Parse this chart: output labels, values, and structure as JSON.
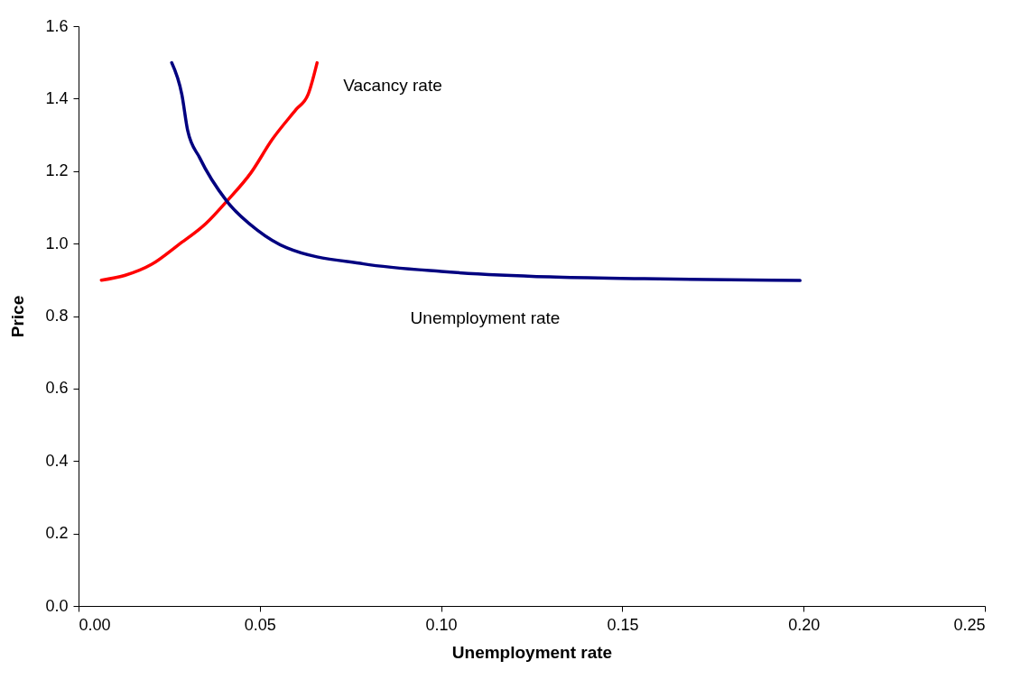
{
  "chart_data": {
    "type": "line",
    "xlabel": "Unemployment rate",
    "ylabel": "Price",
    "xlim": [
      0,
      0.25
    ],
    "xticks": [
      {
        "value": 0,
        "label": "0.00"
      },
      {
        "value": 0.05,
        "label": "0.05"
      },
      {
        "value": 0.1,
        "label": "0.10"
      },
      {
        "value": 0.15,
        "label": "0.15"
      },
      {
        "value": 0.2,
        "label": "0.20"
      },
      {
        "value": 0.25,
        "label": "0.25"
      }
    ],
    "ylim": [
      0,
      1.6
    ],
    "yticks": [
      {
        "value": 0,
        "label": "0.0"
      },
      {
        "value": 0.2,
        "label": "0.2"
      },
      {
        "value": 0.4,
        "label": "0.4"
      },
      {
        "value": 0.6,
        "label": "0.6"
      },
      {
        "value": 0.8,
        "label": "0.8"
      },
      {
        "value": 1,
        "label": "1.0"
      },
      {
        "value": 1.2,
        "label": "1.2"
      },
      {
        "value": 1.4,
        "label": "1.4"
      },
      {
        "value": 1.6,
        "label": "1.6"
      }
    ],
    "grid": false,
    "legend": false,
    "marker": "none",
    "line_style": "solid",
    "series": [
      {
        "name": "Vacancy rate",
        "color": "#ff0000",
        "x": [
          0.0063,
          0.0127,
          0.0202,
          0.0276,
          0.0351,
          0.0409,
          0.0476,
          0.0534,
          0.06,
          0.0633,
          0.0658
        ],
        "values": [
          0.899,
          0.912,
          0.943,
          0.997,
          1.055,
          1.117,
          1.196,
          1.287,
          1.37,
          1.411,
          1.499
        ]
      },
      {
        "name": "Unemployment rate",
        "color": "#000080",
        "x": [
          0.0257,
          0.0285,
          0.0301,
          0.0334,
          0.0409,
          0.0492,
          0.0575,
          0.0786,
          0.1,
          0.13,
          0.156,
          0.199
        ],
        "values": [
          1.499,
          1.411,
          1.312,
          1.237,
          1.117,
          1.038,
          0.988,
          0.944,
          0.923,
          0.908,
          0.903,
          0.898
        ]
      }
    ]
  }
}
